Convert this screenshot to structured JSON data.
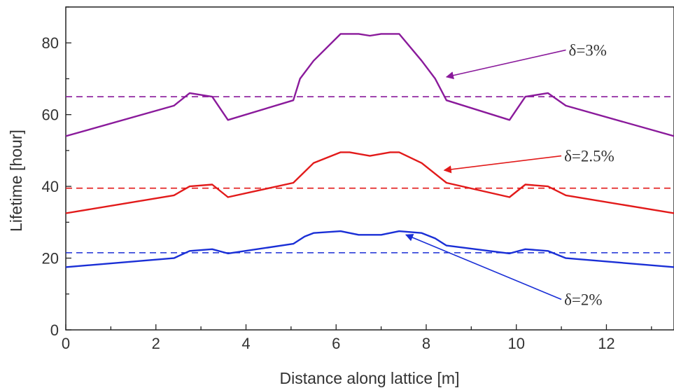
{
  "chart_data": {
    "type": "line",
    "xlabel": "Distance along lattice [m]",
    "ylabel": "Lifetime [hour]",
    "xlim": [
      0,
      13.5
    ],
    "ylim": [
      0,
      90
    ],
    "xticks": [
      0,
      2,
      4,
      6,
      8,
      10,
      12
    ],
    "yticks": [
      0,
      20,
      40,
      60,
      80
    ],
    "grid": false,
    "series": [
      {
        "color": "#8a1a9b",
        "x": [
          0,
          2.4,
          2.75,
          3.25,
          3.6,
          5.05,
          5.2,
          5.5,
          6.1,
          6.5,
          6.75,
          7.0,
          7.4,
          7.9,
          8.2,
          8.45,
          9.85,
          10.2,
          10.7,
          11.1,
          13.5
        ],
        "y": [
          54,
          62.5,
          66,
          65,
          58.5,
          64,
          70,
          75,
          82.5,
          82.5,
          82,
          82.5,
          82.5,
          75,
          70,
          64,
          58.5,
          65,
          66,
          62.5,
          54
        ]
      },
      {
        "color": "#e21a1a",
        "x": [
          0,
          2.4,
          2.75,
          3.25,
          3.6,
          5.05,
          5.5,
          6.1,
          6.3,
          6.75,
          7.2,
          7.4,
          7.9,
          8.45,
          9.85,
          10.2,
          10.7,
          11.1,
          13.5
        ],
        "y": [
          32.5,
          37.5,
          40,
          40.5,
          37,
          41,
          46.5,
          49.5,
          49.5,
          48.5,
          49.5,
          49.5,
          46.5,
          41,
          37,
          40.5,
          40,
          37.5,
          32.5
        ]
      },
      {
        "color": "#1a2fd6",
        "x": [
          0,
          2.4,
          2.75,
          3.25,
          3.6,
          5.05,
          5.3,
          5.5,
          6.1,
          6.5,
          7.0,
          7.4,
          7.9,
          8.2,
          8.45,
          9.85,
          10.2,
          10.7,
          11.1,
          13.5
        ],
        "y": [
          17.5,
          20,
          22,
          22.5,
          21.3,
          24,
          26,
          27,
          27.5,
          26.5,
          26.5,
          27.5,
          27,
          25.5,
          23.5,
          21.3,
          22.5,
          22,
          20,
          17.5
        ]
      }
    ],
    "reference_lines": [
      {
        "y": 65,
        "color": "#8a1a9b",
        "style": "dashed"
      },
      {
        "y": 39.5,
        "color": "#e21a1a",
        "style": "dashed"
      },
      {
        "y": 21.5,
        "color": "#1a2fd6",
        "style": "dashed"
      }
    ],
    "annotations": [
      {
        "text": "δ=3%",
        "color": "#8a1a9b",
        "arrow_to": [
          8.45,
          70.5
        ],
        "arrow_from": [
          11.1,
          78
        ]
      },
      {
        "text": "δ=2.5%",
        "color": "#e21a1a",
        "arrow_to": [
          8.4,
          44.5
        ],
        "arrow_from": [
          11.0,
          48.5
        ]
      },
      {
        "text": "δ=2%",
        "color": "#1a2fd6",
        "arrow_to": [
          7.55,
          26.5
        ],
        "arrow_from": [
          11.0,
          8.5
        ]
      }
    ]
  }
}
